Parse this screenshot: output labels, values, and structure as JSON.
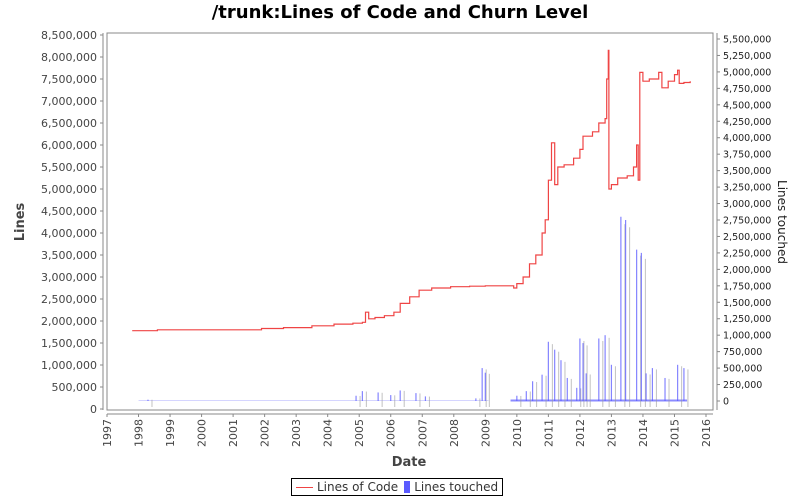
{
  "chart_data": {
    "type": "line",
    "title": "/trunk:Lines of Code and Churn Level",
    "xlabel": "Date",
    "ylabel": "Lines",
    "y2label": "Lines touched",
    "x_ticks": [
      "1997",
      "1998",
      "1999",
      "2000",
      "2001",
      "2002",
      "2003",
      "2004",
      "2005",
      "2006",
      "2007",
      "2008",
      "2009",
      "2010",
      "2011",
      "2012",
      "2013",
      "2014",
      "2015",
      "2016"
    ],
    "y_ticks": [
      "0",
      "500,000",
      "1,000,000",
      "1,500,000",
      "2,000,000",
      "2,500,000",
      "3,000,000",
      "3,500,000",
      "4,000,000",
      "4,500,000",
      "5,000,000",
      "5,500,000",
      "6,000,000",
      "6,500,000",
      "7,000,000",
      "7,500,000",
      "8,000,000",
      "8,500,000"
    ],
    "y2_ticks": [
      "0",
      "250,000",
      "500,000",
      "750,000",
      "1,000,000",
      "1,250,000",
      "1,500,000",
      "1,750,000",
      "2,000,000",
      "2,250,000",
      "2,500,000",
      "2,750,000",
      "3,000,000",
      "3,250,000",
      "3,500,000",
      "3,750,000",
      "4,000,000",
      "4,250,000",
      "4,500,000",
      "4,750,000",
      "5,000,000",
      "5,250,000",
      "5,500,000"
    ],
    "ylim": [
      0,
      8500000
    ],
    "y2lim": [
      0,
      5500000
    ],
    "xlim": [
      1997,
      2016
    ],
    "grid": false,
    "legend_position": "bottom",
    "series": [
      {
        "name": "Lines of Code",
        "axis": "left",
        "color": "#ef4444",
        "style": "step-line",
        "points": [
          [
            1997.8,
            1780000
          ],
          [
            1998.6,
            1800000
          ],
          [
            2001.9,
            1830000
          ],
          [
            2002.6,
            1850000
          ],
          [
            2003.5,
            1890000
          ],
          [
            2004.2,
            1930000
          ],
          [
            2004.8,
            1950000
          ],
          [
            2005.1,
            1970000
          ],
          [
            2005.2,
            2200000
          ],
          [
            2005.3,
            2050000
          ],
          [
            2005.5,
            2080000
          ],
          [
            2005.8,
            2120000
          ],
          [
            2006.1,
            2200000
          ],
          [
            2006.3,
            2400000
          ],
          [
            2006.6,
            2550000
          ],
          [
            2006.9,
            2700000
          ],
          [
            2007.3,
            2750000
          ],
          [
            2007.9,
            2780000
          ],
          [
            2008.5,
            2790000
          ],
          [
            2009.0,
            2800000
          ],
          [
            2009.8,
            2800000
          ],
          [
            2009.9,
            2750000
          ],
          [
            2010.0,
            2850000
          ],
          [
            2010.2,
            3000000
          ],
          [
            2010.4,
            3300000
          ],
          [
            2010.6,
            3500000
          ],
          [
            2010.8,
            4000000
          ],
          [
            2010.9,
            4300000
          ],
          [
            2011.0,
            5200000
          ],
          [
            2011.1,
            6050000
          ],
          [
            2011.2,
            5100000
          ],
          [
            2011.3,
            5500000
          ],
          [
            2011.5,
            5550000
          ],
          [
            2011.8,
            5700000
          ],
          [
            2012.0,
            5900000
          ],
          [
            2012.1,
            6200000
          ],
          [
            2012.4,
            6300000
          ],
          [
            2012.6,
            6500000
          ],
          [
            2012.8,
            6600000
          ],
          [
            2012.85,
            7500000
          ],
          [
            2012.9,
            8150000
          ],
          [
            2012.92,
            5000000
          ],
          [
            2013.0,
            5100000
          ],
          [
            2013.2,
            5250000
          ],
          [
            2013.5,
            5300000
          ],
          [
            2013.7,
            5500000
          ],
          [
            2013.8,
            6000000
          ],
          [
            2013.85,
            5200000
          ],
          [
            2013.9,
            7650000
          ],
          [
            2014.0,
            7450000
          ],
          [
            2014.2,
            7500000
          ],
          [
            2014.5,
            7650000
          ],
          [
            2014.6,
            7300000
          ],
          [
            2014.8,
            7450000
          ],
          [
            2015.0,
            7600000
          ],
          [
            2015.1,
            7700000
          ],
          [
            2015.15,
            7400000
          ],
          [
            2015.3,
            7420000
          ],
          [
            2015.5,
            7450000
          ]
        ]
      },
      {
        "name": "Lines touched",
        "axis": "right",
        "color": "#5b5bff",
        "style": "bars",
        "points": [
          [
            1998.3,
            20000
          ],
          [
            2004.9,
            80000
          ],
          [
            2005.1,
            150000
          ],
          [
            2005.6,
            130000
          ],
          [
            2006.0,
            90000
          ],
          [
            2006.3,
            160000
          ],
          [
            2006.8,
            120000
          ],
          [
            2007.1,
            70000
          ],
          [
            2008.7,
            40000
          ],
          [
            2008.9,
            500000
          ],
          [
            2009.0,
            430000
          ],
          [
            2010.0,
            80000
          ],
          [
            2010.3,
            150000
          ],
          [
            2010.5,
            300000
          ],
          [
            2010.8,
            400000
          ],
          [
            2011.0,
            900000
          ],
          [
            2011.2,
            780000
          ],
          [
            2011.4,
            620000
          ],
          [
            2011.6,
            350000
          ],
          [
            2011.9,
            200000
          ],
          [
            2012.0,
            950000
          ],
          [
            2012.1,
            880000
          ],
          [
            2012.2,
            420000
          ],
          [
            2012.6,
            950000
          ],
          [
            2012.8,
            1000000
          ],
          [
            2013.0,
            550000
          ],
          [
            2013.3,
            2800000
          ],
          [
            2013.45,
            2750000
          ],
          [
            2013.8,
            2300000
          ],
          [
            2013.95,
            2250000
          ],
          [
            2014.1,
            420000
          ],
          [
            2014.3,
            500000
          ],
          [
            2014.7,
            350000
          ],
          [
            2015.1,
            550000
          ],
          [
            2015.3,
            500000
          ]
        ]
      }
    ]
  },
  "legend": {
    "items": [
      {
        "label": "Lines of Code",
        "color": "#ef4444"
      },
      {
        "label": "Lines touched",
        "color": "#5b5bff"
      }
    ]
  }
}
